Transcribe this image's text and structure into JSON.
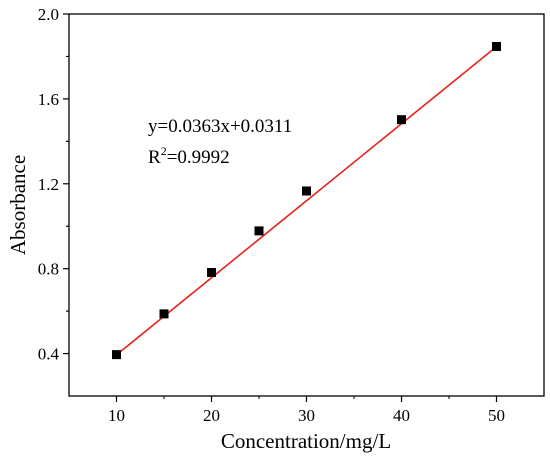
{
  "chart_data": {
    "type": "scatter",
    "xlabel": "Concentration/mg/L",
    "ylabel": "Absorbance",
    "xlim": [
      5,
      55
    ],
    "ylim": [
      0.2,
      2.0
    ],
    "xticks": [
      "10",
      "20",
      "30",
      "40",
      "50"
    ],
    "yticks": [
      "0.4",
      "0.8",
      "1.2",
      "1.6",
      "2.0"
    ],
    "grid": false,
    "legend": "none",
    "series": [
      {
        "x": [
          10,
          15,
          20,
          25,
          30,
          40,
          50
        ],
        "y": [
          0.395,
          0.587,
          0.782,
          0.978,
          1.166,
          1.502,
          1.847
        ],
        "marker": "square",
        "color": "#000000"
      }
    ],
    "fit_line": {
      "slope": 0.0363,
      "intercept": 0.0311,
      "x_range": [
        10,
        50
      ],
      "color": "#e8211b"
    },
    "annotations": {
      "equation": "y=0.0363x+0.0311",
      "r2_prefix": "R",
      "r2_sup": "2",
      "r2_value": "=0.9992"
    }
  }
}
